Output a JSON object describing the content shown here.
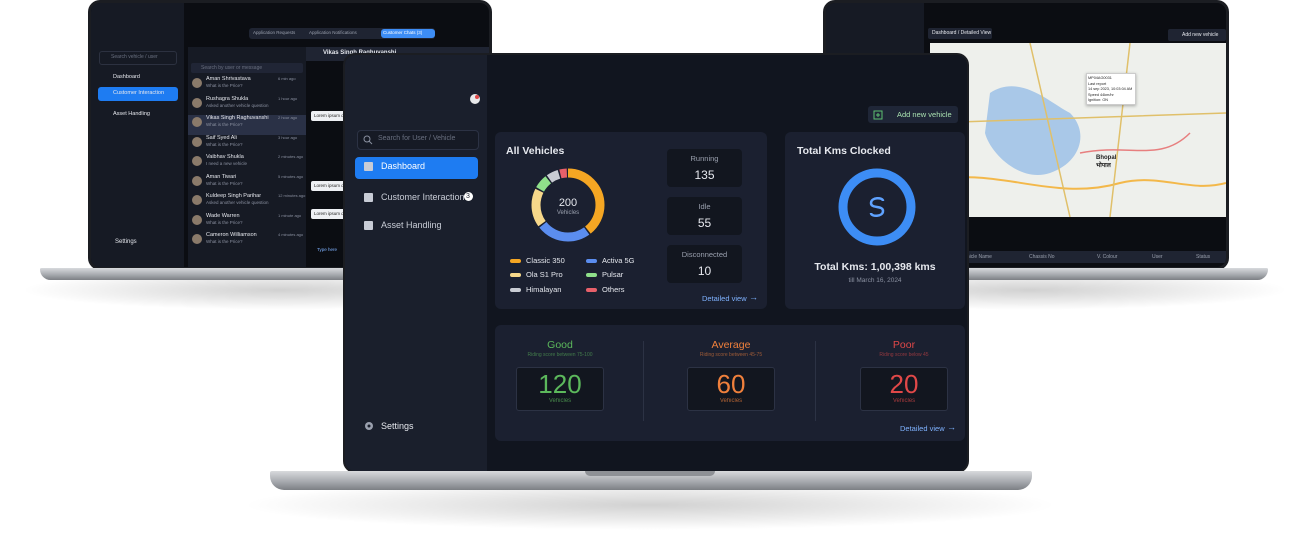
{
  "center": {
    "search": "Search for User / Vehicle",
    "nav": [
      "Dashboard",
      "Customer Interaction",
      "Asset Handling"
    ],
    "nav_badge": "3",
    "settings": "Settings",
    "add_button": "Add new vehicle",
    "all_vehicles": {
      "title": "All Vehicles",
      "total": 200,
      "total_label": "Vehicles",
      "legend": [
        {
          "name": "Classic 350",
          "color": "#f5a623",
          "value": 40
        },
        {
          "name": "Activa 5G",
          "color": "#5b8def",
          "value": 25
        },
        {
          "name": "Ola S1 Pro",
          "color": "#f7d88a",
          "value": 18
        },
        {
          "name": "Pulsar",
          "color": "#8fe08a",
          "value": 7
        },
        {
          "name": "Himalayan",
          "color": "#c9ccd3",
          "value": 6
        },
        {
          "name": "Others",
          "color": "#e8606a",
          "value": 4
        }
      ],
      "statuses": [
        {
          "label": "Running",
          "value": 135
        },
        {
          "label": "Idle",
          "value": 55
        },
        {
          "label": "Disconnected",
          "value": 10
        }
      ],
      "link": "Detailed view"
    },
    "kms": {
      "title": "Total Kms Clocked",
      "total": "Total Kms: 1,00,398 kms",
      "date": "till March 16, 2024"
    },
    "ratings": [
      {
        "label": "Good",
        "note": "Riding score between 75-100",
        "value": 120,
        "unit": "Vehicles",
        "color": "#5cb85c"
      },
      {
        "label": "Average",
        "note": "Riding score between 45-75",
        "value": 60,
        "unit": "Vehicles",
        "color": "#f0803c"
      },
      {
        "label": "Poor",
        "note": "Riding score below 45",
        "value": 20,
        "unit": "Vehicles",
        "color": "#e04848"
      }
    ],
    "ratings_link": "Detailed view"
  },
  "left": {
    "tabs": [
      "Application Requests",
      "Application Notifications",
      "Customer Chats (3)"
    ],
    "search": "Search vehicle / user",
    "nav": [
      "Dashboard",
      "Customer Interaction",
      "Asset Handling"
    ],
    "settings": "Settings",
    "chat_search": "Search by user or message",
    "chat_header": "Vikas Singh Raghuvanshi",
    "chats": [
      {
        "name": "Aman Shrivastava",
        "preview": "What is the Price?",
        "time": "6 min ago"
      },
      {
        "name": "Rushagra Shukla",
        "preview": "Asked another vehicle question",
        "time": "1 hour ago"
      },
      {
        "name": "Vikas Singh Raghuvanshi",
        "preview": "What is the Price?",
        "time": "2 hour ago"
      },
      {
        "name": "Saif Syed Ali",
        "preview": "What is the Price?",
        "time": "3 hour ago"
      },
      {
        "name": "Vaibhav Shukla",
        "preview": "I need a new vehicle",
        "time": "2 minutes ago"
      },
      {
        "name": "Aman Tiwari",
        "preview": "What is the Price?",
        "time": "5 minutes ago"
      },
      {
        "name": "Kuldeep Singh Parihar",
        "preview": "Asked another vehicle question",
        "time": "12 minutes ago"
      },
      {
        "name": "Wade Warren",
        "preview": "What is the Price?",
        "time": "1 minute ago"
      },
      {
        "name": "Cameron Williamson",
        "preview": "What is the Price?",
        "time": "4 minutes ago"
      }
    ],
    "messages": [
      "Lorem ipsum dolor",
      "Lorem ipsum dolor",
      "Lorem ipsum dolor"
    ],
    "reply": "Type here"
  },
  "right": {
    "breadcrumb": "Dashboard / Detailed View",
    "button": "Add new vehicle",
    "city": "Bhopal भोपाल",
    "popup": [
      "MP04AG0031",
      "Last report",
      "14 sep 2023, 10:03:04 AM",
      "Speed 44km/hr",
      "Ignition: ON"
    ],
    "columns": [
      "Vehicle Name",
      "Chassis No",
      "V. Colour",
      "User",
      "Status"
    ]
  }
}
